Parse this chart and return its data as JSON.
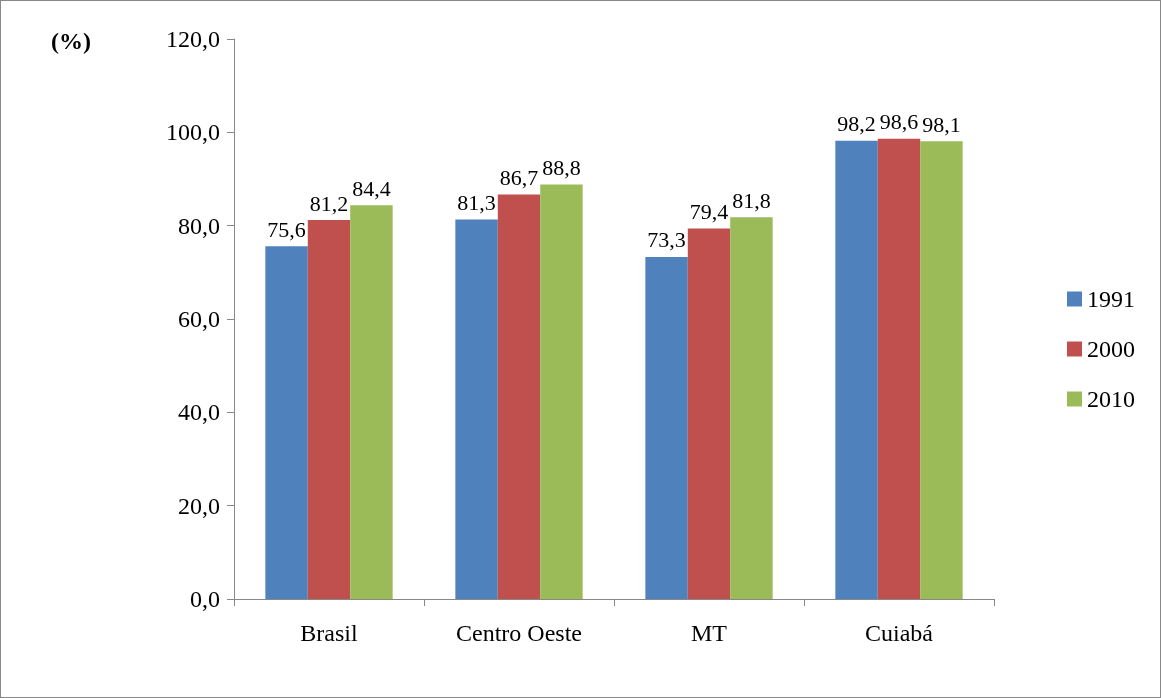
{
  "chart_data": {
    "type": "bar",
    "ylabel": "(%)",
    "categories": [
      "Brasil",
      "Centro Oeste",
      "MT",
      "Cuiabá"
    ],
    "series": [
      {
        "name": "1991",
        "color": "#4f81bd",
        "values": [
          75.6,
          81.3,
          73.3,
          98.2
        ],
        "value_labels": [
          "75,6",
          "81,3",
          "73,3",
          "98,2"
        ]
      },
      {
        "name": "2000",
        "color": "#c0504d",
        "values": [
          81.2,
          86.7,
          79.4,
          98.6
        ],
        "value_labels": [
          "81,2",
          "86,7",
          "79,4",
          "98,6"
        ]
      },
      {
        "name": "2010",
        "color": "#9bbb59",
        "values": [
          84.4,
          88.8,
          81.8,
          98.1
        ],
        "value_labels": [
          "84,4",
          "88,8",
          "81,8",
          "98,1"
        ]
      }
    ],
    "ylim": [
      0,
      120
    ],
    "yticks": [
      {
        "value": 0,
        "label": "0,0"
      },
      {
        "value": 20,
        "label": "20,0"
      },
      {
        "value": 40,
        "label": "40,0"
      },
      {
        "value": 60,
        "label": "60,0"
      },
      {
        "value": 80,
        "label": "80,0"
      },
      {
        "value": 100,
        "label": "100,0"
      },
      {
        "value": 120,
        "label": "120,0"
      }
    ],
    "grid": false,
    "legend": "right"
  }
}
